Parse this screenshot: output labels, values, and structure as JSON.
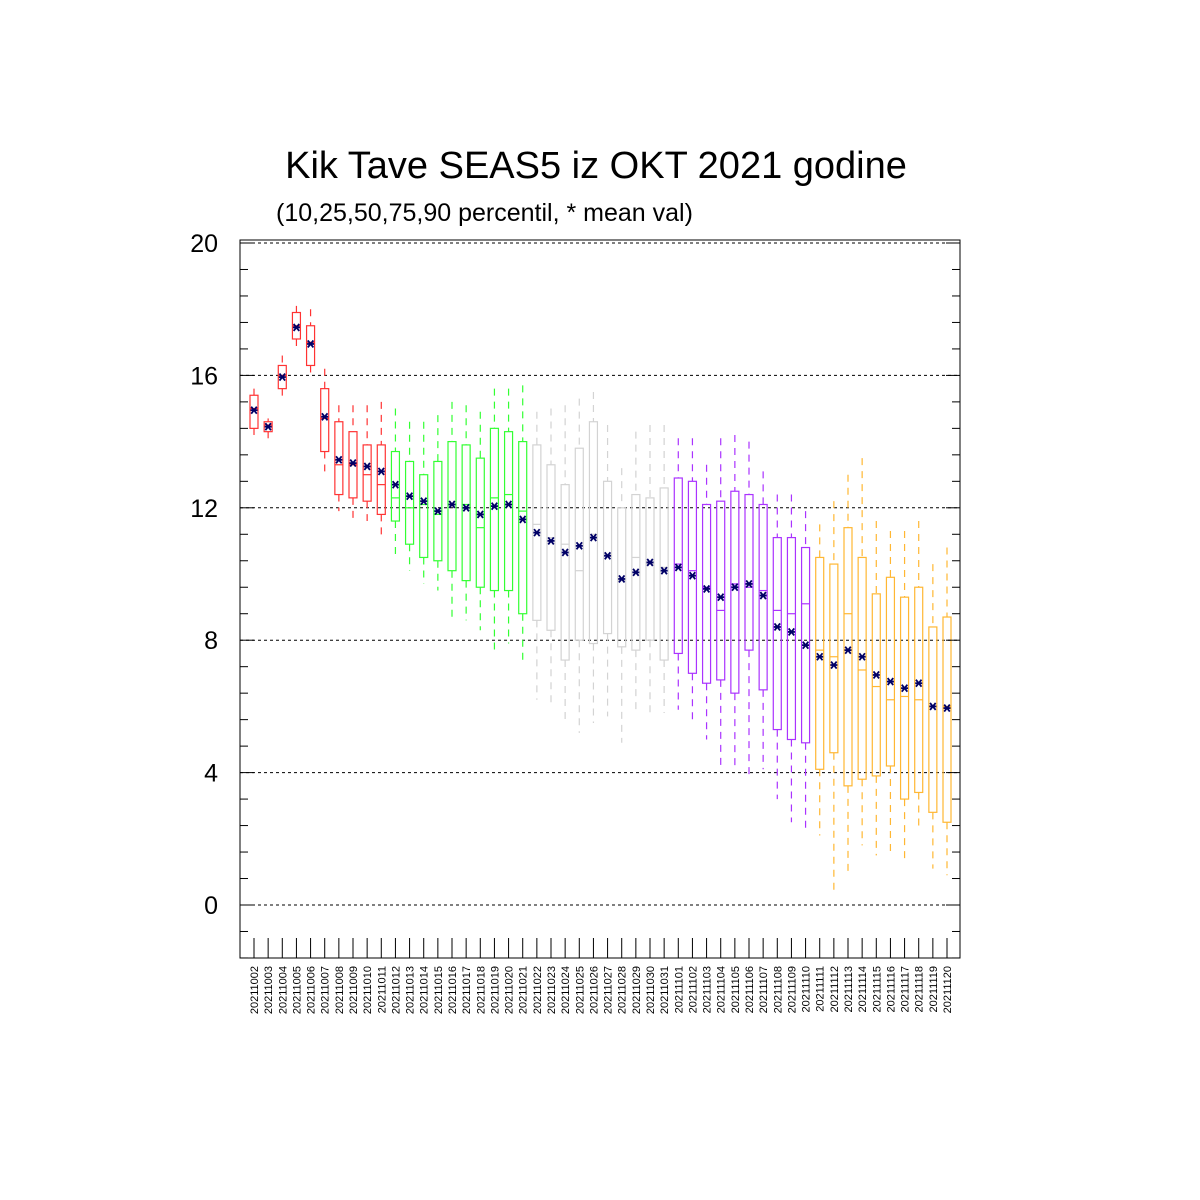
{
  "chart_data": {
    "type": "box",
    "title": "Kik Tave SEAS5 iz OKT 2021 godine",
    "subtitle": "(10,25,50,75,90 percentil, * mean val)",
    "xlabel": "",
    "ylabel": "",
    "ylim": [
      -1.6,
      20.1
    ],
    "yticks": [
      0,
      4,
      8,
      12,
      16,
      20
    ],
    "ytick_labels": [
      "0",
      "4",
      "8",
      "12",
      "16",
      "20"
    ],
    "grid": "horizontal dashed at major ticks",
    "mean_marker_color": "#000066",
    "boxes": [
      {
        "date": "20211002",
        "color": "#ff3333",
        "p10": 14.2,
        "p25": 14.4,
        "p50": 15.0,
        "p75": 15.4,
        "p90": 15.6,
        "mean": 14.95
      },
      {
        "date": "20211003",
        "color": "#ff3333",
        "p10": 14.1,
        "p25": 14.3,
        "p50": 14.5,
        "p75": 14.6,
        "p90": 14.7,
        "mean": 14.45
      },
      {
        "date": "20211004",
        "color": "#ff3333",
        "p10": 15.3,
        "p25": 15.6,
        "p50": 16.0,
        "p75": 16.3,
        "p90": 16.6,
        "mean": 15.95
      },
      {
        "date": "20211005",
        "color": "#ff3333",
        "p10": 16.8,
        "p25": 17.1,
        "p50": 17.5,
        "p75": 17.9,
        "p90": 18.1,
        "mean": 17.45
      },
      {
        "date": "20211006",
        "color": "#ff3333",
        "p10": 16.0,
        "p25": 16.3,
        "p50": 17.0,
        "p75": 17.5,
        "p90": 18.0,
        "mean": 16.95
      },
      {
        "date": "20211007",
        "color": "#ff3333",
        "p10": 13.1,
        "p25": 13.7,
        "p50": 14.7,
        "p75": 15.6,
        "p90": 16.2,
        "mean": 14.75
      },
      {
        "date": "20211008",
        "color": "#ff3333",
        "p10": 11.9,
        "p25": 12.4,
        "p50": 13.3,
        "p75": 14.6,
        "p90": 15.1,
        "mean": 13.45
      },
      {
        "date": "20211009",
        "color": "#ff3333",
        "p10": 11.6,
        "p25": 12.3,
        "p50": 13.3,
        "p75": 14.3,
        "p90": 15.1,
        "mean": 13.35
      },
      {
        "date": "20211010",
        "color": "#ff3333",
        "p10": 11.6,
        "p25": 12.2,
        "p50": 13.0,
        "p75": 13.9,
        "p90": 15.1,
        "mean": 13.25
      },
      {
        "date": "20211011",
        "color": "#ff3333",
        "p10": 11.1,
        "p25": 11.8,
        "p50": 12.7,
        "p75": 13.9,
        "p90": 15.2,
        "mean": 13.1
      },
      {
        "date": "20211012",
        "color": "#33ff33",
        "p10": 10.5,
        "p25": 11.6,
        "p50": 12.3,
        "p75": 13.7,
        "p90": 15.0,
        "mean": 12.7
      },
      {
        "date": "20211013",
        "color": "#33ff33",
        "p10": 10.1,
        "p25": 10.9,
        "p50": 12.0,
        "p75": 13.4,
        "p90": 14.6,
        "mean": 12.35
      },
      {
        "date": "20211014",
        "color": "#33ff33",
        "p10": 9.7,
        "p25": 10.5,
        "p50": 12.1,
        "p75": 13.0,
        "p90": 14.6,
        "mean": 12.2
      },
      {
        "date": "20211015",
        "color": "#33ff33",
        "p10": 9.5,
        "p25": 10.4,
        "p50": 11.8,
        "p75": 13.4,
        "p90": 14.8,
        "mean": 11.9
      },
      {
        "date": "20211016",
        "color": "#33ff33",
        "p10": 8.6,
        "p25": 10.1,
        "p50": 12.1,
        "p75": 14.0,
        "p90": 15.2,
        "mean": 12.1
      },
      {
        "date": "20211017",
        "color": "#33ff33",
        "p10": 8.6,
        "p25": 9.8,
        "p50": 12.1,
        "p75": 13.9,
        "p90": 15.1,
        "mean": 12.0
      },
      {
        "date": "20211018",
        "color": "#33ff33",
        "p10": 8.3,
        "p25": 9.6,
        "p50": 11.4,
        "p75": 13.5,
        "p90": 14.9,
        "mean": 11.8
      },
      {
        "date": "20211019",
        "color": "#33ff33",
        "p10": 7.7,
        "p25": 9.5,
        "p50": 12.3,
        "p75": 14.4,
        "p90": 15.6,
        "mean": 12.05
      },
      {
        "date": "20211020",
        "color": "#33ff33",
        "p10": 7.9,
        "p25": 9.5,
        "p50": 12.4,
        "p75": 14.3,
        "p90": 15.6,
        "mean": 12.1
      },
      {
        "date": "20211021",
        "color": "#33ff33",
        "p10": 7.3,
        "p25": 8.8,
        "p50": 11.9,
        "p75": 14.0,
        "p90": 15.7,
        "mean": 11.65
      },
      {
        "date": "20211022",
        "color": "#d3d3d3",
        "p10": 6.2,
        "p25": 8.6,
        "p50": 11.5,
        "p75": 13.9,
        "p90": 14.9,
        "mean": 11.25
      },
      {
        "date": "20211023",
        "color": "#d3d3d3",
        "p10": 6.0,
        "p25": 8.3,
        "p50": 11.1,
        "p75": 13.3,
        "p90": 15.0,
        "mean": 11.0
      },
      {
        "date": "20211024",
        "color": "#d3d3d3",
        "p10": 5.5,
        "p25": 7.4,
        "p50": 10.9,
        "p75": 12.7,
        "p90": 15.1,
        "mean": 10.65
      },
      {
        "date": "20211025",
        "color": "#d3d3d3",
        "p10": 5.2,
        "p25": 8.0,
        "p50": 10.1,
        "p75": 13.8,
        "p90": 15.3,
        "mean": 10.85
      },
      {
        "date": "20211026",
        "color": "#d3d3d3",
        "p10": 5.5,
        "p25": 7.9,
        "p50": 11.2,
        "p75": 14.6,
        "p90": 15.5,
        "mean": 11.1
      },
      {
        "date": "20211027",
        "color": "#d3d3d3",
        "p10": 5.7,
        "p25": 8.2,
        "p50": 10.6,
        "p75": 12.8,
        "p90": 14.5,
        "mean": 10.55
      },
      {
        "date": "20211028",
        "color": "#d3d3d3",
        "p10": 4.9,
        "p25": 7.8,
        "p50": 9.8,
        "p75": 12.0,
        "p90": 13.2,
        "mean": 9.85
      },
      {
        "date": "20211029",
        "color": "#d3d3d3",
        "p10": 5.8,
        "p25": 7.7,
        "p50": 10.5,
        "p75": 12.4,
        "p90": 14.3,
        "mean": 10.05
      },
      {
        "date": "20211030",
        "color": "#d3d3d3",
        "p10": 5.8,
        "p25": 8.0,
        "p50": 10.3,
        "p75": 12.3,
        "p90": 14.5,
        "mean": 10.35
      },
      {
        "date": "20211031",
        "color": "#d3d3d3",
        "p10": 5.8,
        "p25": 7.4,
        "p50": 10.2,
        "p75": 12.6,
        "p90": 14.5,
        "mean": 10.1
      },
      {
        "date": "20211101",
        "color": "#aa33ff",
        "p10": 5.9,
        "p25": 7.6,
        "p50": 10.3,
        "p75": 12.9,
        "p90": 14.1,
        "mean": 10.2
      },
      {
        "date": "20211102",
        "color": "#aa33ff",
        "p10": 5.6,
        "p25": 7.0,
        "p50": 10.1,
        "p75": 12.8,
        "p90": 14.1,
        "mean": 9.95
      },
      {
        "date": "20211103",
        "color": "#aa33ff",
        "p10": 5.0,
        "p25": 6.7,
        "p50": 9.6,
        "p75": 12.1,
        "p90": 13.3,
        "mean": 9.55
      },
      {
        "date": "20211104",
        "color": "#aa33ff",
        "p10": 4.2,
        "p25": 6.8,
        "p50": 8.9,
        "p75": 12.2,
        "p90": 14.1,
        "mean": 9.3
      },
      {
        "date": "20211105",
        "color": "#aa33ff",
        "p10": 4.2,
        "p25": 6.4,
        "p50": 9.7,
        "p75": 12.5,
        "p90": 14.2,
        "mean": 9.6
      },
      {
        "date": "20211106",
        "color": "#aa33ff",
        "p10": 3.8,
        "p25": 7.7,
        "p50": 9.6,
        "p75": 12.4,
        "p90": 14.0,
        "mean": 9.7
      },
      {
        "date": "20211107",
        "color": "#aa33ff",
        "p10": 4.1,
        "p25": 6.5,
        "p50": 9.5,
        "p75": 12.1,
        "p90": 13.1,
        "mean": 9.35
      },
      {
        "date": "20211108",
        "color": "#aa33ff",
        "p10": 3.2,
        "p25": 5.3,
        "p50": 8.9,
        "p75": 11.1,
        "p90": 12.4,
        "mean": 8.4
      },
      {
        "date": "20211109",
        "color": "#aa33ff",
        "p10": 2.5,
        "p25": 5.0,
        "p50": 8.8,
        "p75": 11.1,
        "p90": 12.4,
        "mean": 8.25
      },
      {
        "date": "20211110",
        "color": "#aa33ff",
        "p10": 2.2,
        "p25": 4.9,
        "p50": 9.1,
        "p75": 10.8,
        "p90": 11.9,
        "mean": 7.85
      },
      {
        "date": "20211111",
        "color": "#ffb733",
        "p10": 2.1,
        "p25": 4.1,
        "p50": 7.7,
        "p75": 10.5,
        "p90": 11.5,
        "mean": 7.5
      },
      {
        "date": "20211112",
        "color": "#ffb733",
        "p10": 0.3,
        "p25": 4.6,
        "p50": 7.5,
        "p75": 10.3,
        "p90": 12.2,
        "mean": 7.25
      },
      {
        "date": "20211113",
        "color": "#ffb733",
        "p10": 1.0,
        "p25": 3.6,
        "p50": 8.8,
        "p75": 11.4,
        "p90": 13.0,
        "mean": 7.7
      },
      {
        "date": "20211114",
        "color": "#ffb733",
        "p10": 1.8,
        "p25": 3.8,
        "p50": 7.1,
        "p75": 10.5,
        "p90": 13.5,
        "mean": 7.5
      },
      {
        "date": "20211115",
        "color": "#ffb733",
        "p10": 1.5,
        "p25": 3.9,
        "p50": 6.6,
        "p75": 9.4,
        "p90": 11.6,
        "mean": 6.95
      },
      {
        "date": "20211116",
        "color": "#ffb733",
        "p10": 1.6,
        "p25": 4.2,
        "p50": 6.2,
        "p75": 9.9,
        "p90": 11.3,
        "mean": 6.75
      },
      {
        "date": "20211117",
        "color": "#ffb733",
        "p10": 1.4,
        "p25": 3.2,
        "p50": 6.3,
        "p75": 9.3,
        "p90": 11.3,
        "mean": 6.55
      },
      {
        "date": "20211118",
        "color": "#ffb733",
        "p10": 2.4,
        "p25": 3.4,
        "p50": 6.2,
        "p75": 9.6,
        "p90": 11.6,
        "mean": 6.7
      },
      {
        "date": "20211119",
        "color": "#ffb733",
        "p10": 1.1,
        "p25": 2.8,
        "p50": 6.0,
        "p75": 8.4,
        "p90": 10.3,
        "mean": 6.0
      },
      {
        "date": "20211120",
        "color": "#ffb733",
        "p10": 0.9,
        "p25": 2.5,
        "p50": 6.0,
        "p75": 8.7,
        "p90": 10.8,
        "mean": 5.95
      }
    ]
  }
}
